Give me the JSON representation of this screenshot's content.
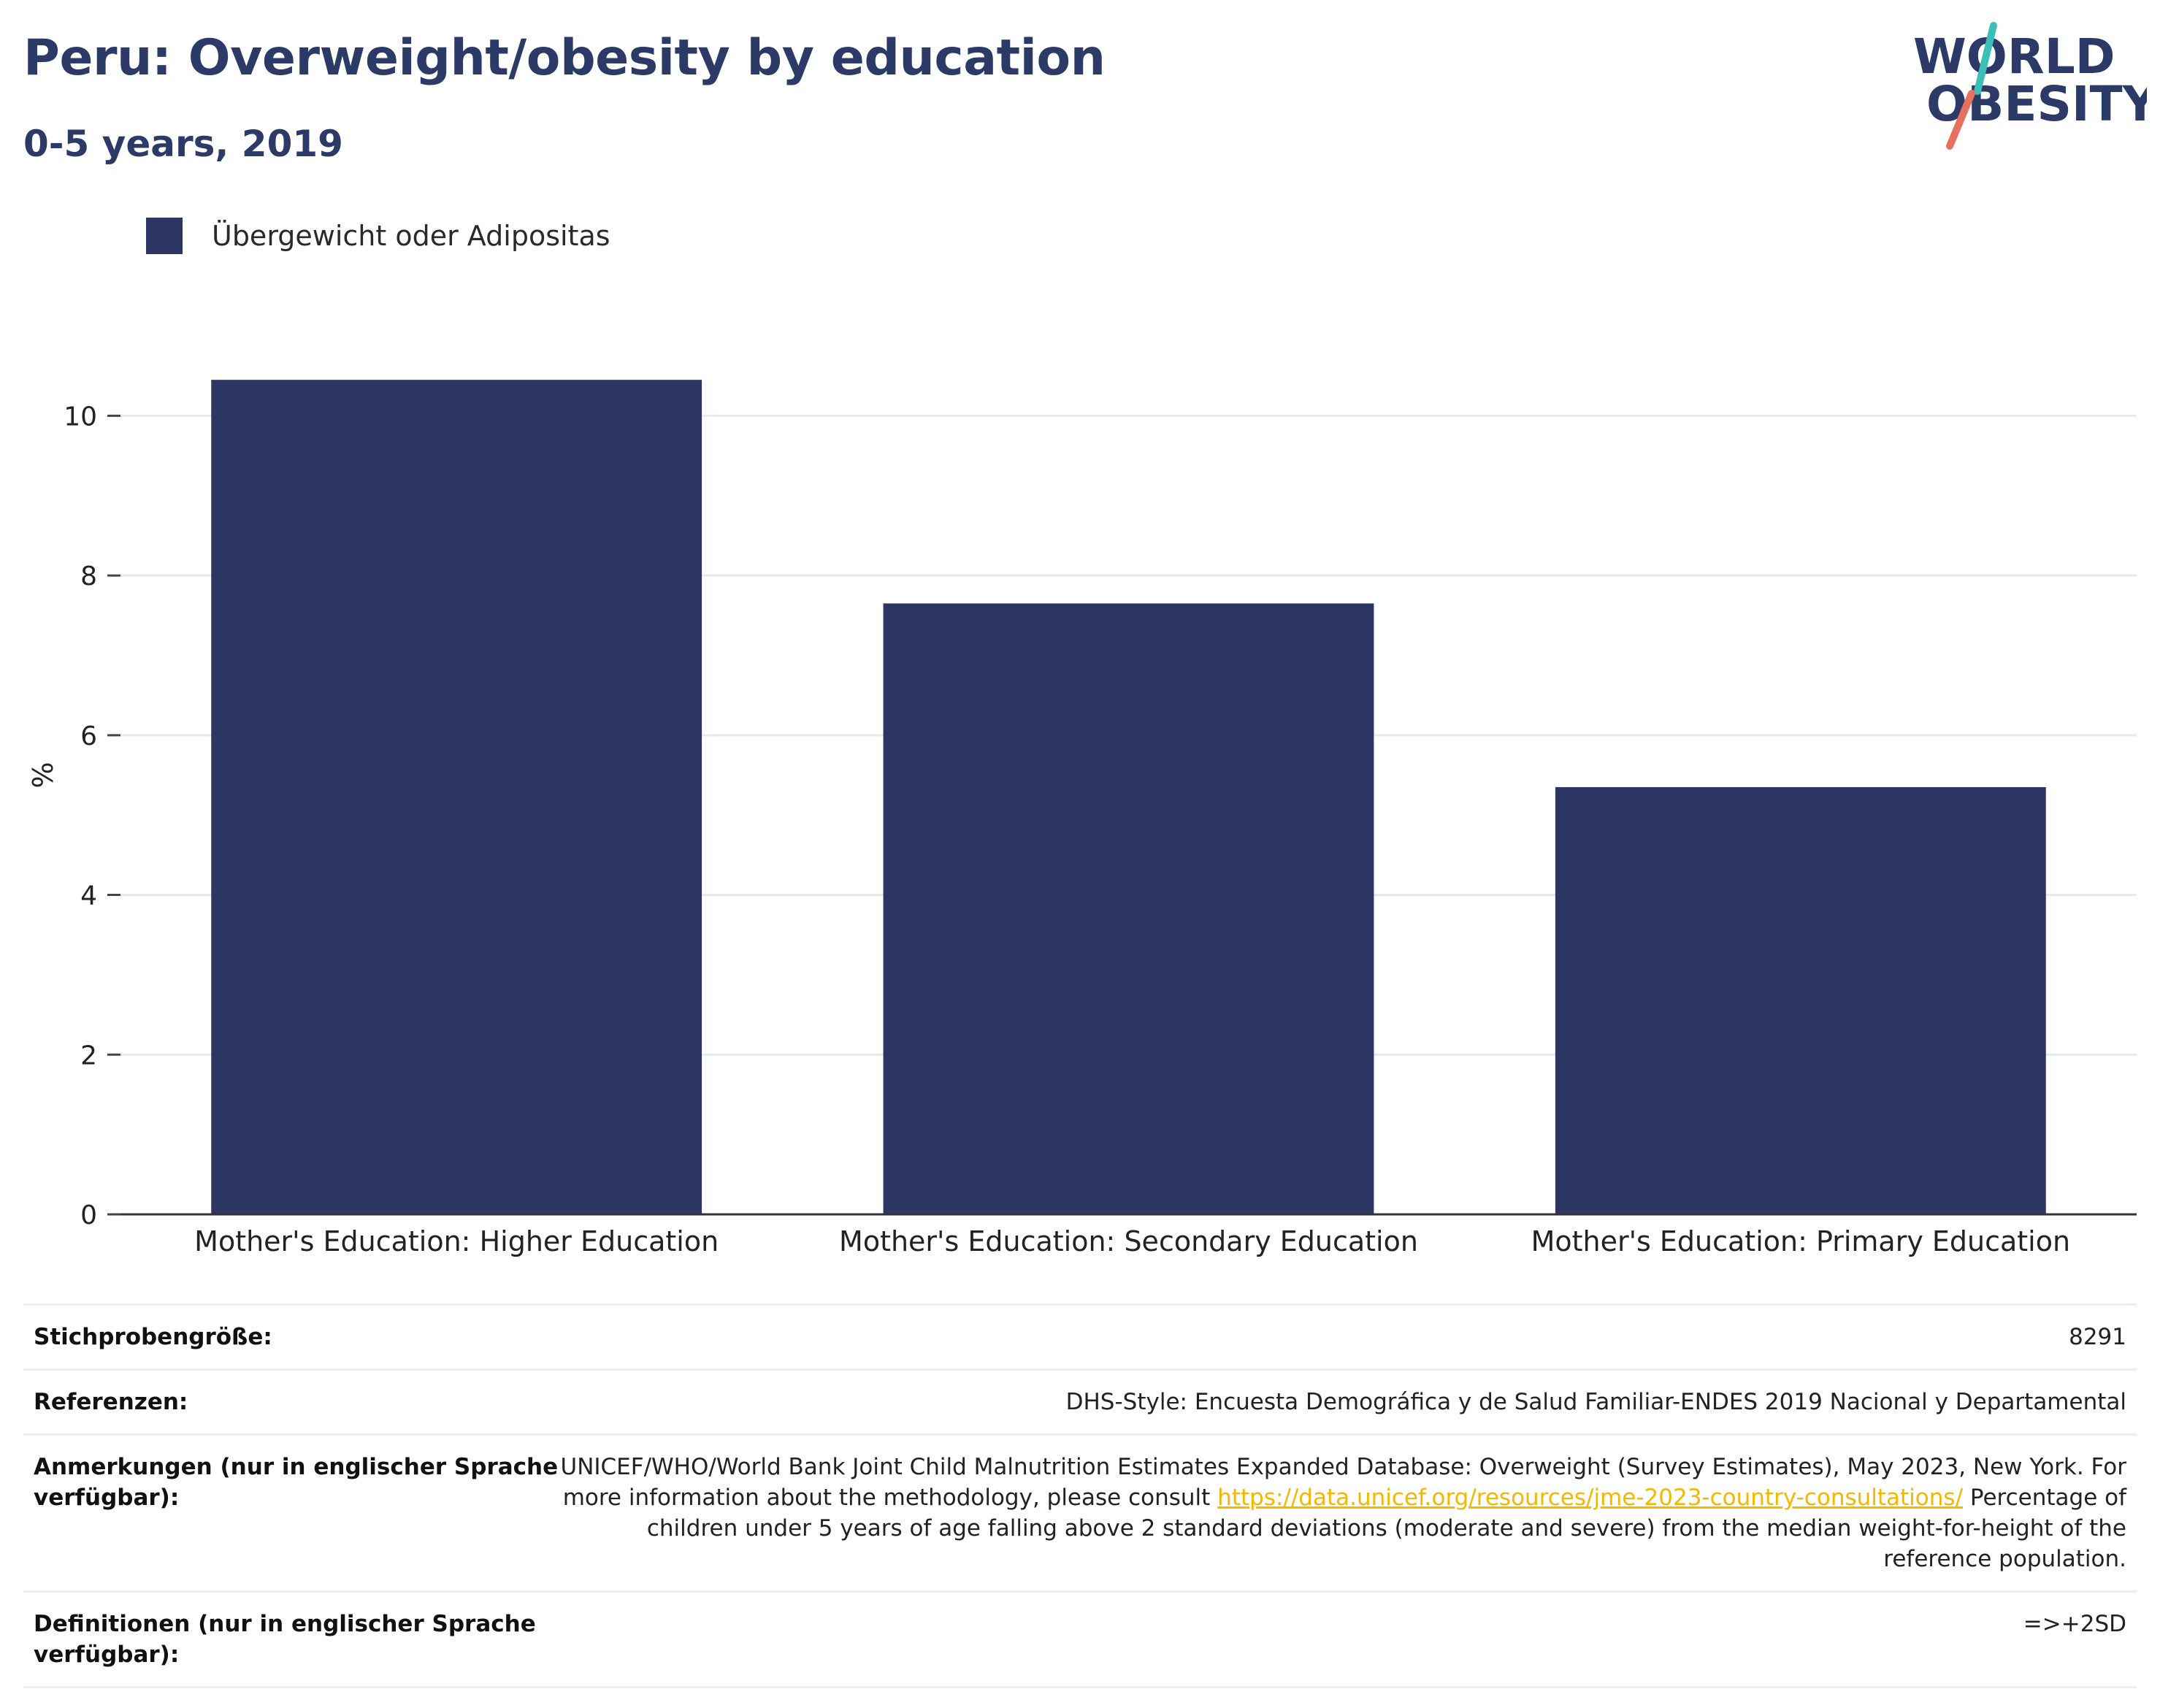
{
  "header": {
    "title": "Peru: Overweight/obesity by education",
    "subtitle": "0-5 years, 2019"
  },
  "logo": {
    "line1": "WORLD",
    "line2": "OBESITY"
  },
  "colors": {
    "bar": "#2b3662",
    "title": "#2b3a67",
    "link": "#f5b800",
    "logo_teal": "#3bbfb7",
    "logo_coral": "#e8705f"
  },
  "legend": {
    "label": "Übergewicht oder Adipositas"
  },
  "chart_data": {
    "type": "bar",
    "categories": [
      "Mother's Education: Higher Education",
      "Mother's Education: Secondary Education",
      "Mother's Education: Primary Education"
    ],
    "series": [
      {
        "name": "Übergewicht oder Adipositas",
        "values": [
          10.45,
          7.65,
          5.35
        ]
      }
    ],
    "ylabel": "%",
    "ylim": [
      0,
      11
    ],
    "yticks": [
      0,
      2,
      4,
      6,
      8,
      10
    ],
    "grid": true,
    "legend_position": "top-left"
  },
  "info": {
    "sample_label": "Stichprobengröße:",
    "sample_value": "8291",
    "refs_label": "Referenzen:",
    "refs_value": "DHS-Style: Encuesta Demográfica y de Salud Familiar-ENDES 2019 Nacional y Departamental",
    "notes_label": "Anmerkungen (nur in englischer Sprache verfügbar):",
    "notes_text1": "UNICEF/WHO/World Bank Joint Child Malnutrition Estimates Expanded Database: Overweight (Survey Estimates), May 2023, New York. For more information about the methodology, please consult ",
    "notes_link": "https://data.unicef.org/resources/jme-2023-country-consultations/",
    "notes_text2": " Percentage of children under 5 years of age falling above 2 standard deviations (moderate and severe) from the median weight-for-height of the reference population.",
    "defs_label": "Definitionen (nur in englischer Sprache verfügbar):",
    "defs_value": "=>+2SD"
  }
}
